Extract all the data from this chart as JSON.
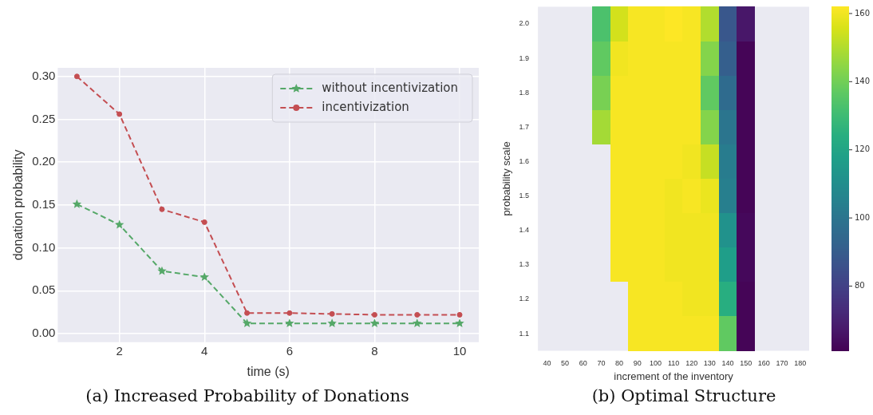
{
  "chart_data": [
    {
      "type": "line",
      "xlabel": "time (s)",
      "ylabel": "donation probability",
      "x": [
        1,
        2,
        3,
        4,
        5,
        6,
        7,
        8,
        9,
        10
      ],
      "series": [
        {
          "name": "without incentivization",
          "color": "#55a868",
          "marker": "star",
          "values": [
            0.151,
            0.127,
            0.073,
            0.066,
            0.012,
            0.012,
            0.012,
            0.012,
            0.012,
            0.012
          ]
        },
        {
          "name": "incentivization",
          "color": "#c44e52",
          "marker": "circle",
          "values": [
            0.3,
            0.256,
            0.145,
            0.13,
            0.024,
            0.024,
            0.023,
            0.022,
            0.022,
            0.022
          ]
        }
      ],
      "xlim": [
        0.55,
        10.45
      ],
      "xticks": [
        2,
        4,
        6,
        8,
        10
      ],
      "ylim": [
        -0.01,
        0.31
      ],
      "yticks": [
        {
          "value": 0,
          "label": "0.00"
        },
        {
          "value": 0.05,
          "label": "0.05"
        },
        {
          "value": 0.1,
          "label": "0.10"
        },
        {
          "value": 0.15,
          "label": "0.15"
        },
        {
          "value": 0.2,
          "label": "0.20"
        },
        {
          "value": 0.25,
          "label": "0.25"
        },
        {
          "value": 0.3,
          "label": "0.30"
        }
      ],
      "grid": true,
      "legend": "top right",
      "line_style": "dashed",
      "annotations": [
        "(a) Increased Probability of Donations"
      ]
    },
    {
      "type": "heatmap",
      "xlabel": "increment of the inventory",
      "ylabel": "probability scale",
      "categories": [
        "40",
        "50",
        "60",
        "70",
        "80",
        "90",
        "100",
        "110",
        "120",
        "130",
        "140",
        "150",
        "160",
        "170",
        "180"
      ],
      "y_categories": [
        "2.0",
        "1.9",
        "1.8",
        "1.7",
        "1.6",
        "1.5",
        "1.4",
        "1.3",
        "1.2",
        "1.1"
      ],
      "cells": [
        [
          null,
          null,
          null,
          133,
          155,
          161,
          161,
          162,
          161,
          150,
          88,
          67,
          null,
          null,
          null
        ],
        [
          null,
          null,
          null,
          137,
          160,
          161,
          161,
          161,
          161,
          143,
          91,
          62,
          null,
          null,
          null
        ],
        [
          null,
          null,
          null,
          141,
          161,
          161,
          161,
          161,
          161,
          137,
          96,
          62,
          null,
          null,
          null
        ],
        [
          null,
          null,
          null,
          148,
          161,
          161,
          161,
          161,
          161,
          143,
          100,
          62,
          null,
          null,
          null
        ],
        [
          null,
          null,
          null,
          null,
          161,
          161,
          161,
          161,
          160,
          153,
          103,
          62,
          null,
          null,
          null
        ],
        [
          null,
          null,
          null,
          null,
          161,
          161,
          161,
          160,
          161,
          159,
          104,
          62,
          null,
          null,
          null
        ],
        [
          null,
          null,
          null,
          null,
          161,
          161,
          161,
          160,
          160,
          160,
          112,
          63,
          null,
          null,
          null
        ],
        [
          null,
          null,
          null,
          null,
          161,
          161,
          161,
          160,
          160,
          160,
          117,
          63,
          null,
          null,
          null
        ],
        [
          null,
          null,
          null,
          null,
          null,
          161,
          161,
          161,
          160,
          160,
          124,
          62,
          null,
          null,
          null
        ],
        [
          null,
          null,
          null,
          null,
          null,
          161,
          161,
          161,
          161,
          161,
          137,
          62,
          null,
          null,
          null
        ]
      ],
      "clim": [
        61,
        162
      ],
      "cticks": [
        80,
        100,
        120,
        140,
        160
      ],
      "annotations": [
        "(b) Optimal Structure"
      ]
    }
  ]
}
